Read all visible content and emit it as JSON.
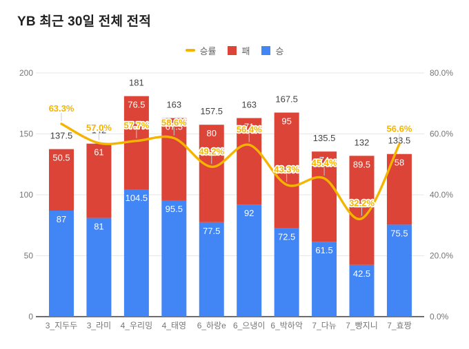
{
  "title": "YB 최근 30일 전체 전적",
  "legend": {
    "items": [
      {
        "id": "win-rate",
        "label": "승률",
        "swatch": "line",
        "color": "#F4B400"
      },
      {
        "id": "loss",
        "label": "패",
        "swatch": "square",
        "color": "#DB4437"
      },
      {
        "id": "win",
        "label": "승",
        "swatch": "square",
        "color": "#4285F4"
      }
    ]
  },
  "colors": {
    "win": "#4285F4",
    "loss": "#DB4437",
    "win_rate_line": "#F4B400",
    "gridline": "#e6e6e6",
    "baseline": "#3d3d3d",
    "annotation_stem": "#cccccc",
    "axis_text": "#757575",
    "total_label": "#424242",
    "bar_value_label": "#ffffff",
    "title_text": "#212121",
    "background": "#ffffff"
  },
  "chart_data": {
    "type": "bar",
    "subtype": "stacked-columns-with-line",
    "title": "YB 최근 30일 전체 전적",
    "legend_position": "top",
    "grid": true,
    "categories": [
      "3_지두두",
      "3_라미",
      "4_우리밍",
      "4_태영",
      "6_하랑e",
      "6_으냉이",
      "6_박하악",
      "7_다뉴",
      "7_빵지니",
      "7_효짱"
    ],
    "series": [
      {
        "name": "승",
        "type": "bar",
        "stack": true,
        "axis": "left",
        "color": "#4285F4",
        "values": [
          87,
          81,
          104.5,
          95.5,
          77.5,
          92,
          72.5,
          61.5,
          42.5,
          75.5
        ],
        "labels": [
          "87",
          "81",
          "104.5",
          "95.5",
          "77.5",
          "92",
          "72.5",
          "61.5",
          "42.5",
          "75.5"
        ]
      },
      {
        "name": "패",
        "type": "bar",
        "stack": true,
        "axis": "left",
        "color": "#DB4437",
        "values": [
          50.5,
          61,
          76.5,
          67.5,
          80,
          71,
          95,
          74,
          89.5,
          58
        ],
        "labels": [
          "50.5",
          "61",
          "76.5",
          "67.5",
          "80",
          "71",
          "95",
          "74",
          "89.5",
          "58"
        ]
      },
      {
        "name": "승률",
        "type": "line",
        "stack": false,
        "axis": "right",
        "color": "#F4B400",
        "values": [
          63.3,
          57.0,
          57.7,
          58.6,
          49.2,
          56.4,
          43.3,
          45.4,
          32.2,
          56.6
        ],
        "labels": [
          "63.3%",
          "57.0%",
          "57.7%",
          "58.6%",
          "49.2%",
          "56.4%",
          "43.3%",
          "45.4%",
          "32.2%",
          "56.6%"
        ]
      }
    ],
    "totals": {
      "values": [
        137.5,
        142,
        181,
        163,
        157.5,
        163,
        167.5,
        135.5,
        132,
        133.5
      ],
      "labels": [
        "137.5",
        "142",
        "181",
        "163",
        "157.5",
        "163",
        "167.5",
        "135.5",
        "132",
        "133.5"
      ]
    },
    "left_axis": {
      "ticks": [
        "0",
        "50",
        "100",
        "150",
        "200"
      ],
      "range": [
        0,
        200
      ]
    },
    "right_axis": {
      "ticks": [
        "0.0%",
        "20.0%",
        "40.0%",
        "60.0%",
        "80.0%"
      ],
      "range": [
        0,
        80
      ]
    }
  }
}
